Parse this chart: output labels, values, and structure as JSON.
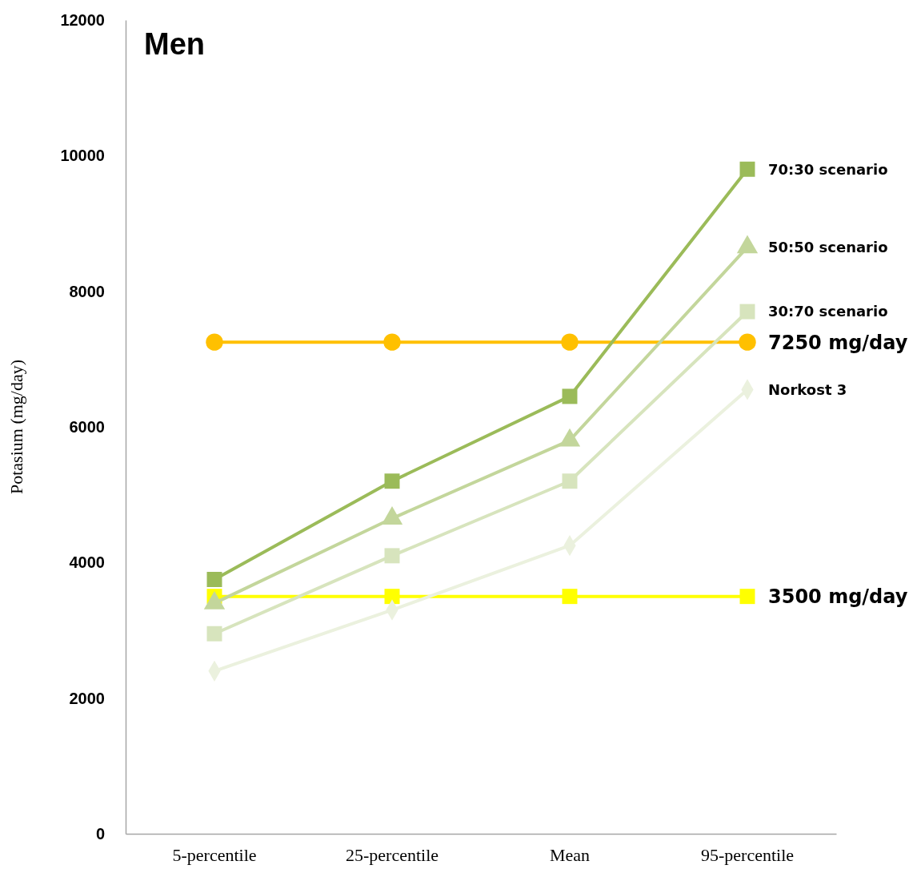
{
  "chart_data": {
    "type": "line",
    "title": "Men",
    "ylabel": "Potasium (mg/day)",
    "categories": [
      "5-percentile",
      "25-percentile",
      "Mean",
      "95-percentile"
    ],
    "ylim": [
      0,
      12000
    ],
    "yticks": [
      0,
      2000,
      4000,
      6000,
      8000,
      10000,
      12000
    ],
    "grid": false,
    "legend": false,
    "series": [
      {
        "name": "7250 mg/day",
        "color": "#ffc000",
        "marker": "circle",
        "values": [
          7250,
          7250,
          7250,
          7250
        ]
      },
      {
        "name": "3500 mg/day",
        "color": "#ffff00",
        "marker": "square",
        "values": [
          3500,
          3500,
          3500,
          3500
        ]
      },
      {
        "name": "Norkost 3",
        "color": "#ebf1de",
        "marker": "diamond",
        "values": [
          2400,
          3300,
          4250,
          6550
        ]
      },
      {
        "name": "30:70 scenario",
        "color": "#d7e4bd",
        "marker": "square",
        "values": [
          2950,
          4100,
          5200,
          7700
        ]
      },
      {
        "name": "50:50 scenario",
        "color": "#c3d69b",
        "marker": "triangle",
        "values": [
          3400,
          4650,
          5800,
          8650
        ]
      },
      {
        "name": "70:30 scenario",
        "color": "#9bbb59",
        "marker": "square",
        "values": [
          3750,
          5200,
          6450,
          9800
        ]
      }
    ]
  }
}
